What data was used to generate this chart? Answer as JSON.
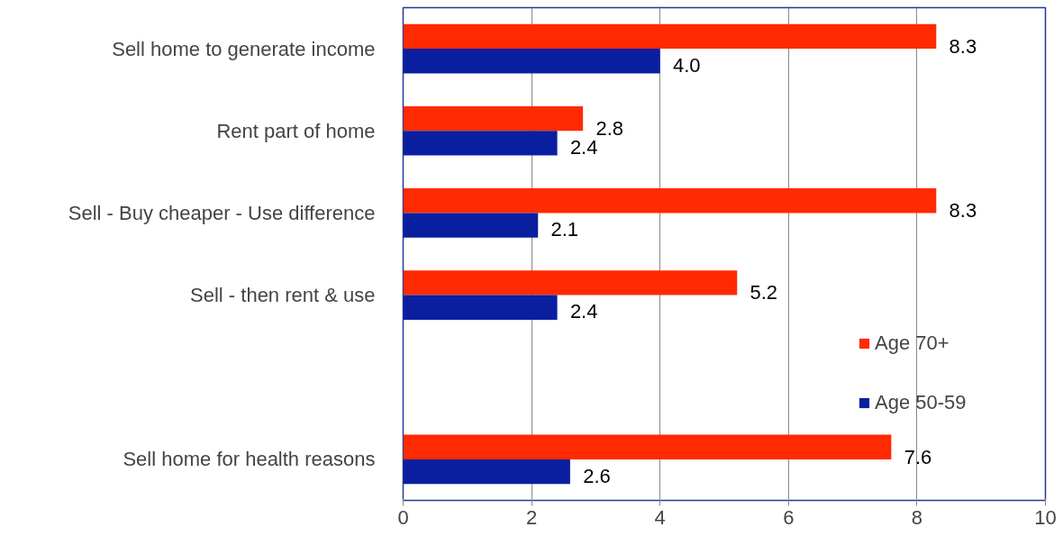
{
  "chart_data": {
    "type": "bar",
    "orientation": "horizontal",
    "categories": [
      "Sell home to generate income",
      "Rent part of home",
      "Sell - Buy cheaper - Use difference",
      "Sell - then rent & use",
      null,
      "Sell home for health reasons"
    ],
    "series": [
      {
        "name": "Age 70+",
        "color": "#ff2a00",
        "values": [
          8.3,
          2.8,
          8.3,
          5.2,
          null,
          7.6
        ],
        "value_labels": [
          "8.3",
          "2.8",
          "8.3",
          "5.2",
          null,
          "7.6"
        ]
      },
      {
        "name": "Age 50-59",
        "color": "#0a1fa0",
        "values": [
          4.0,
          2.4,
          2.1,
          2.4,
          null,
          2.6
        ],
        "value_labels": [
          "4.0",
          "2.4",
          "2.1",
          "2.4",
          null,
          "2.6"
        ]
      }
    ],
    "xlim": [
      0,
      10
    ],
    "xticks": [
      0,
      2,
      4,
      6,
      8,
      10
    ],
    "grid": "x",
    "legend": "right"
  }
}
